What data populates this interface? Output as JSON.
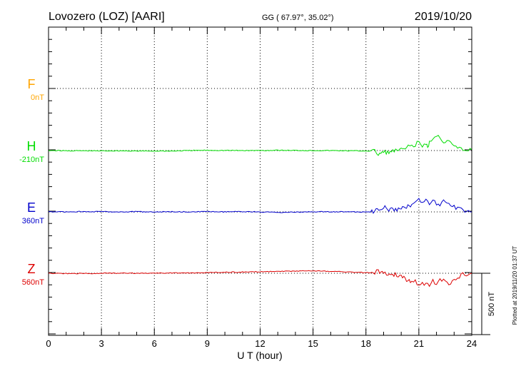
{
  "header": {
    "station": "Lovozero (LOZ)  [AARI]",
    "coords": "GG ( 67.97°,  35.02°)",
    "date": "2019/10/20"
  },
  "footer": {
    "plotted": "Plotted at 2019/11/20 01:37 UT"
  },
  "chart_data": {
    "type": "line",
    "xlabel": "U T (hour)",
    "xlim": [
      0,
      24
    ],
    "xticks": [
      0,
      3,
      6,
      9,
      12,
      15,
      18,
      21,
      24
    ],
    "xtick_labels": [
      "0",
      "3",
      "6",
      "9",
      "12",
      "15",
      "18",
      "21",
      "24"
    ],
    "scale_bar": {
      "label": "500 nT",
      "nT": 500
    },
    "series": [
      {
        "name": "F",
        "baseline_label": "0nT",
        "baseline_nT": 0,
        "color": "#FFA500",
        "x": [],
        "y": []
      },
      {
        "name": "H",
        "baseline_label": "-210nT",
        "baseline_nT": -210,
        "color": "#00DD00",
        "x": [
          0,
          0.5,
          1,
          2,
          3,
          4,
          5,
          6,
          7,
          8,
          9,
          10,
          11,
          12,
          13,
          14,
          15,
          16,
          17,
          18,
          18.5,
          18.7,
          19,
          19.3,
          19.6,
          20,
          20.3,
          20.5,
          20.7,
          20.9,
          21,
          21.2,
          21.4,
          21.5,
          21.6,
          21.8,
          22,
          22.2,
          22.4,
          22.6,
          22.8,
          23,
          23.2,
          23.4,
          23.6,
          23.8,
          24
        ],
        "y": [
          -210,
          -210,
          -208,
          -208,
          -207,
          -208,
          -206,
          -206,
          -206,
          -210,
          -212,
          -211,
          -210,
          -210,
          -212,
          -211,
          -210,
          -210,
          -208,
          -207,
          -205,
          -180,
          -198,
          -195,
          -205,
          -215,
          -230,
          -245,
          -240,
          -270,
          -280,
          -245,
          -275,
          -230,
          -280,
          -300,
          -330,
          -320,
          -280,
          -295,
          -270,
          -240,
          -230,
          -220,
          -205,
          -218,
          -218
        ]
      },
      {
        "name": "E",
        "baseline_label": "360nT",
        "baseline_nT": 360,
        "color": "#0000CC",
        "x": [
          0,
          1,
          2,
          3,
          4,
          5,
          6,
          7,
          8,
          9,
          10,
          11,
          12,
          13,
          14,
          15,
          16,
          17,
          18,
          18.5,
          18.8,
          19,
          19.3,
          19.6,
          20,
          20.3,
          20.6,
          20.8,
          21,
          21.2,
          21.4,
          21.6,
          21.8,
          22,
          22.2,
          22.4,
          22.6,
          22.8,
          23,
          23.2,
          23.4,
          23.6,
          23.8,
          24
        ],
        "y": [
          360,
          360,
          357,
          358,
          360,
          358,
          360,
          358,
          360,
          358,
          360,
          358,
          360,
          364,
          362,
          360,
          358,
          360,
          360,
          358,
          330,
          320,
          338,
          348,
          338,
          320,
          300,
          270,
          250,
          295,
          265,
          290,
          260,
          300,
          300,
          275,
          300,
          300,
          320,
          328,
          342,
          350,
          355,
          360
        ]
      },
      {
        "name": "Z",
        "baseline_label": "560nT",
        "baseline_nT": 560,
        "color": "#DD0000",
        "x": [
          0,
          1,
          2,
          3,
          4,
          5,
          6,
          7,
          8,
          9,
          10,
          11,
          12,
          13,
          14,
          15,
          16,
          17,
          18,
          18.5,
          18.7,
          19,
          19.5,
          20,
          20.3,
          20.6,
          20.8,
          21,
          21.2,
          21.4,
          21.6,
          21.8,
          22,
          22.2,
          22.4,
          22.6,
          22.8,
          23,
          23.2,
          23.4,
          23.6,
          23.8,
          24
        ],
        "y": [
          560,
          562,
          562,
          560,
          560,
          560,
          558,
          558,
          558,
          555,
          552,
          550,
          548,
          545,
          542,
          540,
          545,
          550,
          555,
          555,
          540,
          560,
          565,
          580,
          610,
          625,
          630,
          650,
          640,
          645,
          655,
          625,
          655,
          620,
          625,
          635,
          640,
          610,
          590,
          575,
          565,
          565,
          560
        ]
      }
    ]
  }
}
